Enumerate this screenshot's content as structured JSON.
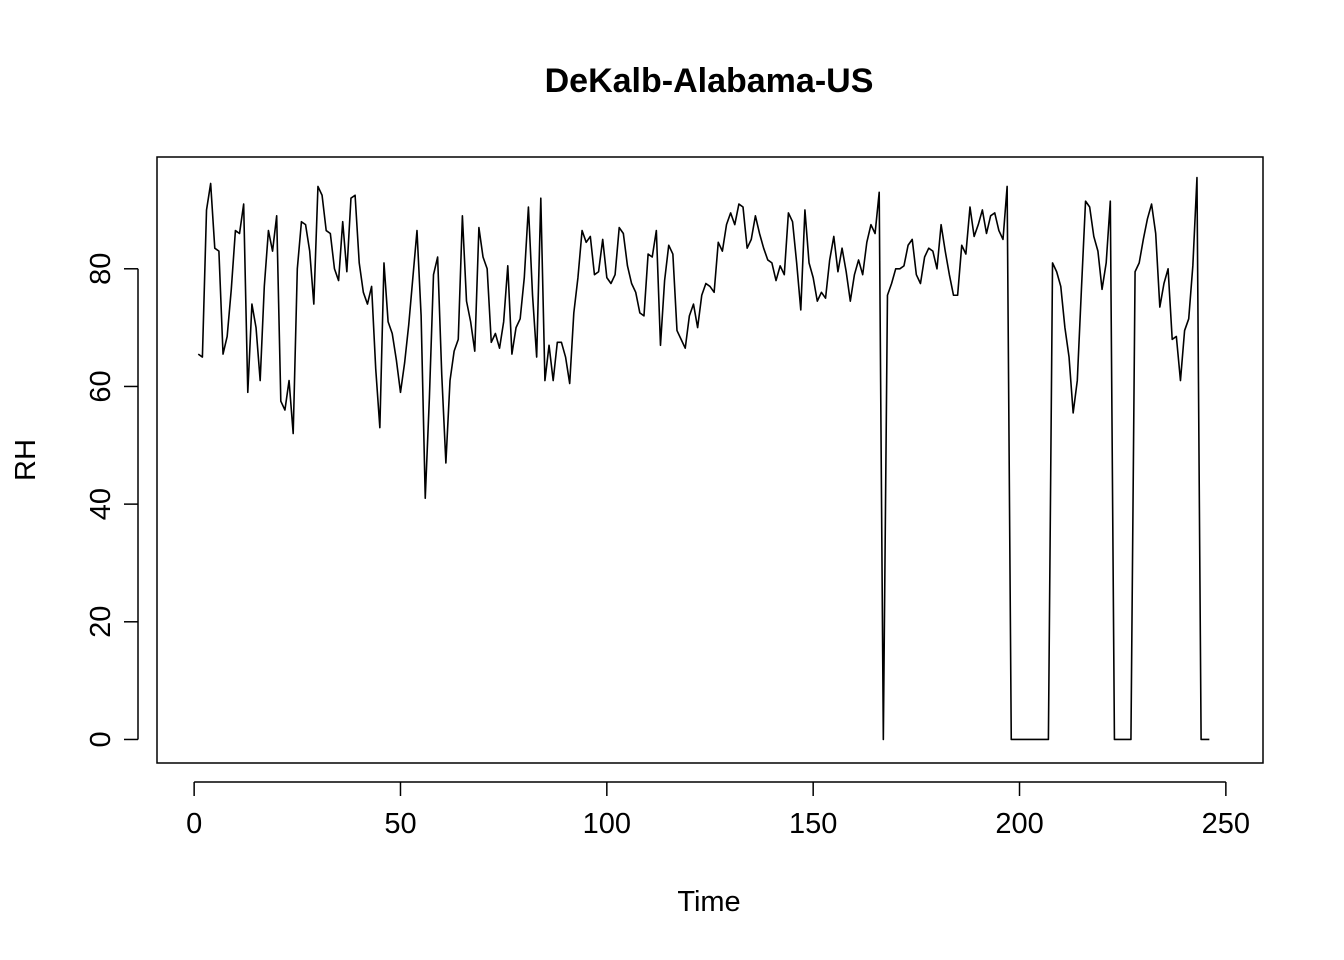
{
  "chart_data": {
    "type": "line",
    "title": "DeKalb-Alabama-US",
    "xlabel": "Time",
    "ylabel": "RH",
    "xlim": [
      -9,
      259
    ],
    "ylim": [
      -4,
      99
    ],
    "xticks": [
      0,
      50,
      100,
      150,
      200,
      250
    ],
    "yticks": [
      0,
      20,
      40,
      60,
      80
    ],
    "x_tick_labels": [
      "0",
      "50",
      "100",
      "150",
      "200",
      "250"
    ],
    "y_tick_labels": [
      "0",
      "20",
      "40",
      "60",
      "80"
    ],
    "grid": false,
    "legend": "none",
    "line_color": "#000000",
    "x_start": 1,
    "series": [
      {
        "values": [
          65.5,
          65,
          90,
          94.5,
          83.5,
          83,
          65.5,
          68.5,
          76.5,
          86.5,
          86,
          91,
          59,
          74,
          70,
          61,
          77,
          86.5,
          83,
          89,
          57.5,
          56,
          61,
          52,
          80,
          88,
          87.5,
          83,
          74,
          94,
          92.5,
          86.5,
          86,
          80,
          78,
          88,
          79.5,
          92,
          92.5,
          81,
          76,
          74,
          77,
          63,
          53,
          81,
          71,
          69,
          64.5,
          59,
          64,
          70.5,
          78.5,
          86.5,
          72,
          41,
          58,
          79,
          82,
          62,
          47,
          61,
          66,
          68,
          89,
          74.5,
          71,
          66,
          87,
          82,
          80,
          67.5,
          69,
          66.5,
          71,
          80.5,
          65.5,
          70,
          71.5,
          78.5,
          90.5,
          75.5,
          65,
          92,
          61,
          67,
          61,
          67.5,
          67.5,
          65,
          60.5,
          72.5,
          78.5,
          86.5,
          84.5,
          85.5,
          79,
          79.5,
          85,
          78.5,
          77.5,
          79,
          87,
          86,
          80.5,
          77.5,
          76,
          72.5,
          72,
          82.5,
          82,
          86.5,
          67,
          78,
          84,
          82.5,
          69.5,
          68,
          66.5,
          72,
          74,
          70,
          75.5,
          77.5,
          77,
          76,
          84.5,
          83,
          87.5,
          89.5,
          87.5,
          91,
          90.5,
          83.5,
          85,
          89,
          86,
          83.5,
          81.5,
          81,
          78,
          80.5,
          79,
          89.5,
          88,
          81,
          73,
          90,
          81,
          78.5,
          74.5,
          76,
          75,
          81.5,
          85.5,
          79.5,
          83.5,
          79.5,
          74.5,
          79,
          81.5,
          79,
          84.5,
          87.5,
          86,
          93,
          0,
          75.5,
          77.5,
          80,
          80,
          80.5,
          84,
          85,
          79,
          77.5,
          82,
          83.5,
          83,
          80,
          87.5,
          83,
          79,
          75.5,
          75.5,
          84,
          82.5,
          90.5,
          85.5,
          87.5,
          90,
          86,
          89,
          89.5,
          86.5,
          85,
          94,
          0,
          0,
          0,
          0,
          0,
          0,
          0,
          0,
          0,
          0,
          81,
          79.5,
          77,
          70,
          65,
          55.5,
          61,
          76.5,
          91.5,
          90.5,
          85.5,
          83,
          76.5,
          81,
          91.5,
          0,
          0,
          0,
          0,
          0,
          79.5,
          81,
          85,
          88.5,
          91,
          86,
          73.5,
          77.5,
          80,
          68,
          68.5,
          61,
          69.5,
          71.5,
          80.5,
          95.5,
          0,
          0,
          0
        ]
      }
    ]
  }
}
